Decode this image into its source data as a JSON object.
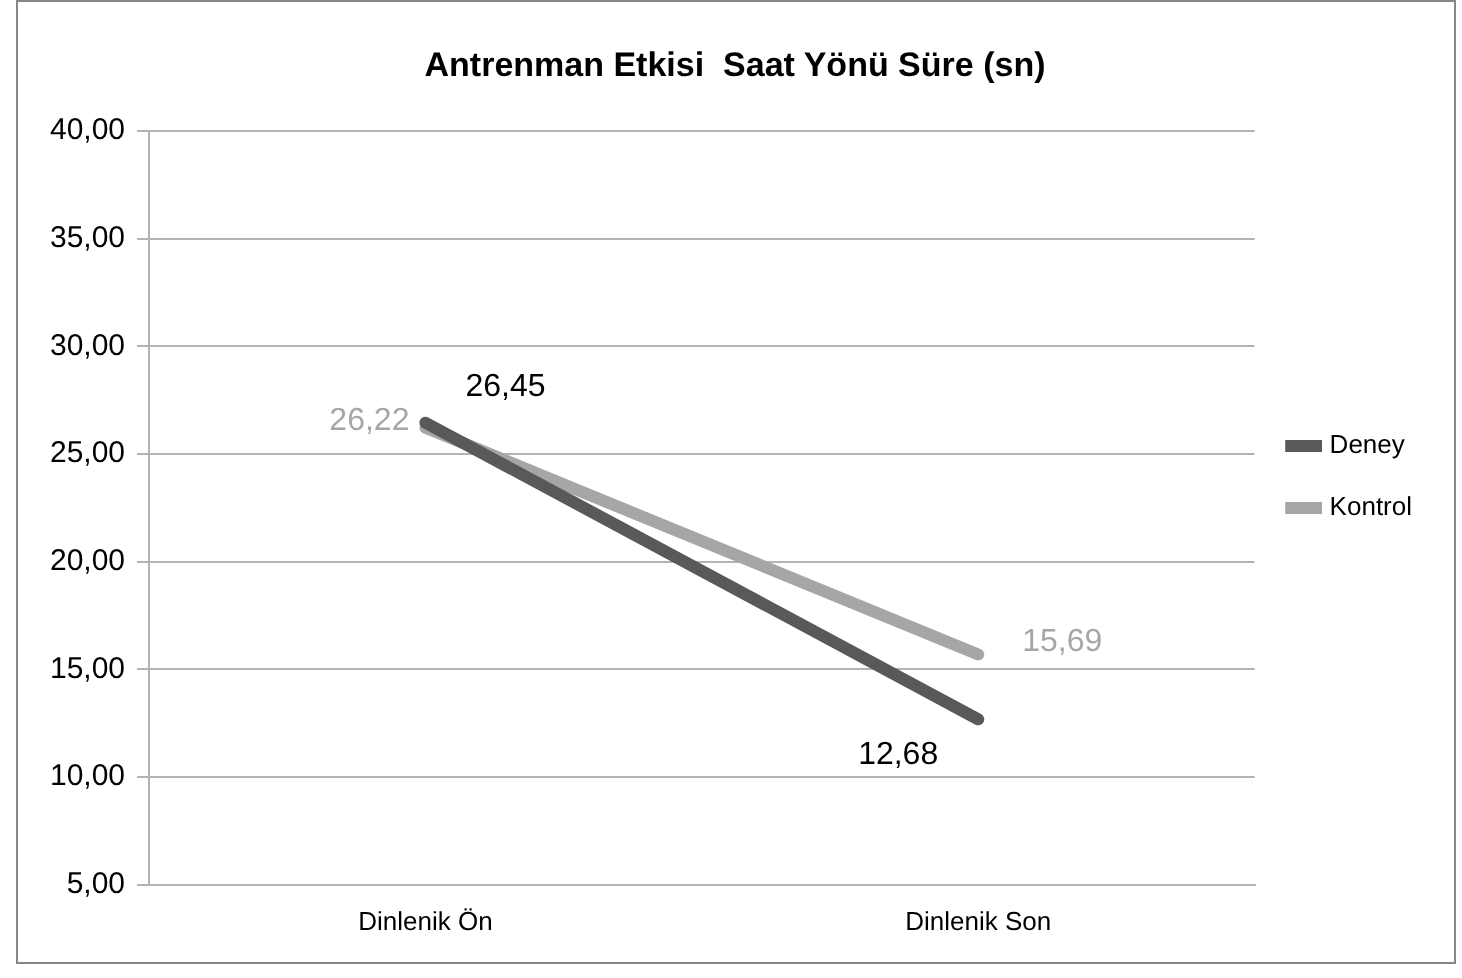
{
  "chart_data": {
    "type": "line",
    "title": "Antrenman Etkisi  Saat Yönü Süre (sn)",
    "categories": [
      "Dinlenik Ön",
      "Dinlenik Son"
    ],
    "series": [
      {
        "name": "Deney",
        "color": "#595959",
        "values": [
          26.45,
          12.68
        ],
        "value_labels": [
          "26,45",
          "12,68"
        ]
      },
      {
        "name": "Kontrol",
        "color": "#a6a6a6",
        "values": [
          26.22,
          15.69
        ],
        "value_labels": [
          "26,22",
          "15,69"
        ]
      }
    ],
    "ylim": [
      5,
      40
    ],
    "yticks": [
      {
        "value": 5,
        "label": "5,00"
      },
      {
        "value": 10,
        "label": "10,00"
      },
      {
        "value": 15,
        "label": "15,00"
      },
      {
        "value": 20,
        "label": "20,00"
      },
      {
        "value": 25,
        "label": "25,00"
      },
      {
        "value": 30,
        "label": "30,00"
      },
      {
        "value": 35,
        "label": "35,00"
      },
      {
        "value": 40,
        "label": "40,00"
      }
    ],
    "grid": "y",
    "legend": "right",
    "marker": "none",
    "line_style": "solid"
  }
}
